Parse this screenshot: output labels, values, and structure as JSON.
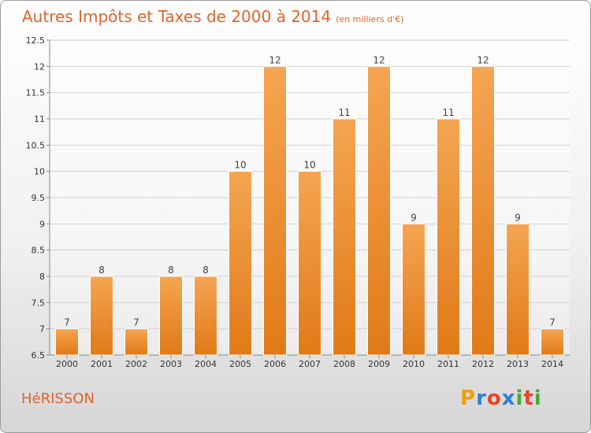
{
  "title": "Autres Impôts et Taxes de 2000 à 2014",
  "subtitle": "(en milliers d'€)",
  "place": "HéRISSON",
  "logo": {
    "letters": [
      "P",
      "r",
      "o",
      "x",
      "i",
      "t",
      "i"
    ],
    "colors": [
      "#f0a000",
      "#2a7fd4",
      "#e8442a",
      "#2a7fd4",
      "#4aa83a",
      "#e8442a",
      "#4aa83a"
    ]
  },
  "colors": {
    "accent": "#e0642a",
    "bar_top": "#f5a552",
    "bar_bottom": "#e07a18"
  },
  "chart_data": {
    "type": "bar",
    "categories": [
      "2000",
      "2001",
      "2002",
      "2003",
      "2004",
      "2005",
      "2006",
      "2007",
      "2008",
      "2009",
      "2010",
      "2011",
      "2012",
      "2013",
      "2014"
    ],
    "values": [
      7,
      8,
      7,
      8,
      8,
      10,
      12,
      10,
      11,
      12,
      9,
      11,
      12,
      9,
      7
    ],
    "ylim": [
      6.5,
      12.5
    ],
    "yticks": [
      "6.5",
      "7",
      "7.5",
      "8",
      "8.5",
      "9",
      "9.5",
      "10",
      "10.5",
      "11",
      "11.5",
      "12",
      "12.5"
    ],
    "grid": true
  }
}
